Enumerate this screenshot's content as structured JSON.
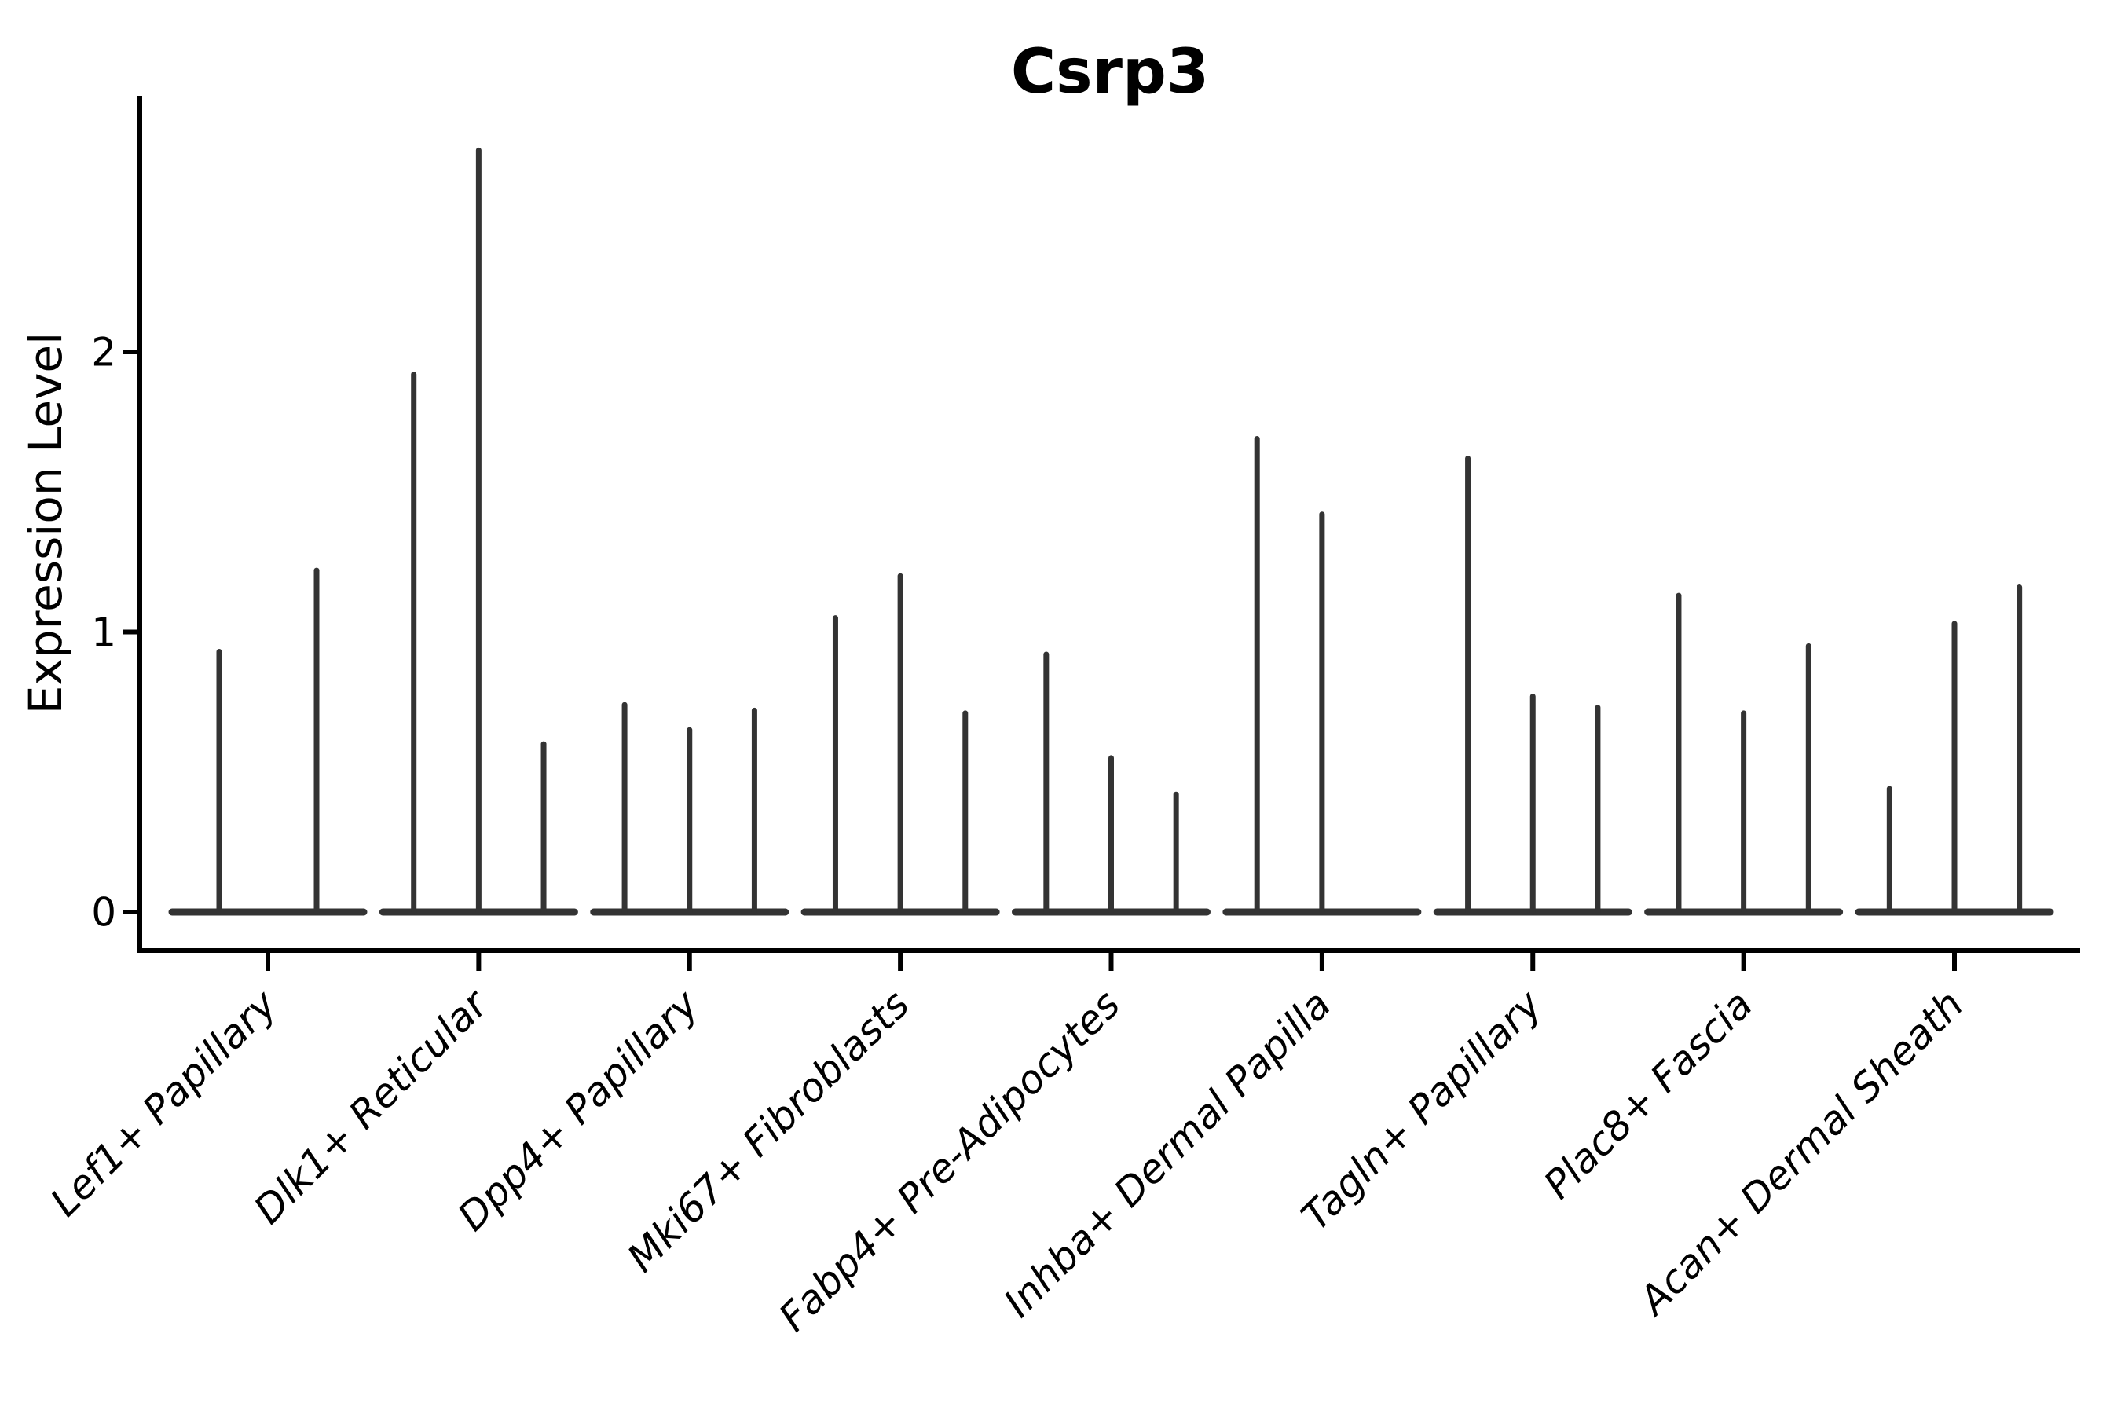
{
  "chart_data": {
    "type": "violin",
    "title": "Csrp3",
    "xlabel": "",
    "ylabel": "Expression Level",
    "yticks": [
      0,
      1,
      2
    ],
    "ylim": [
      -0.14,
      2.91
    ],
    "grid": false,
    "legend": false,
    "xtick_rotation": 45,
    "xtick_style": "italic",
    "violin_appearance": "collapsed-to-lines (near-zero width violins on a flat baseline at 0)",
    "groups": [
      {
        "category": "Lef1+ Papillary",
        "violin_peaks": [
          0.93,
          1.22
        ]
      },
      {
        "category": "Dlk1+ Reticular",
        "violin_peaks": [
          1.92,
          2.72,
          0.6
        ]
      },
      {
        "category": "Dpp4+ Papillary",
        "violin_peaks": [
          0.74,
          0.65,
          0.72
        ]
      },
      {
        "category": "Mki67+ Fibroblasts",
        "violin_peaks": [
          1.05,
          1.2,
          0.71
        ]
      },
      {
        "category": "Fabp4+ Pre-Adipocytes",
        "violin_peaks": [
          0.92,
          0.55,
          0.42
        ]
      },
      {
        "category": "Inhba+ Dermal Papilla",
        "violin_peaks": [
          1.69,
          1.42,
          0
        ]
      },
      {
        "category": "Tagln+ Papillary",
        "violin_peaks": [
          1.62,
          0.77,
          0.73
        ]
      },
      {
        "category": "Plac8+ Fascia",
        "violin_peaks": [
          1.13,
          0.71,
          0.95
        ]
      },
      {
        "category": "Acan+ Dermal Sheath",
        "violin_peaks": [
          0.44,
          1.03,
          1.16
        ]
      }
    ],
    "colors": {
      "violin_line": "#333333",
      "axis": "#000000",
      "text": "#000000",
      "background": "#ffffff"
    }
  }
}
